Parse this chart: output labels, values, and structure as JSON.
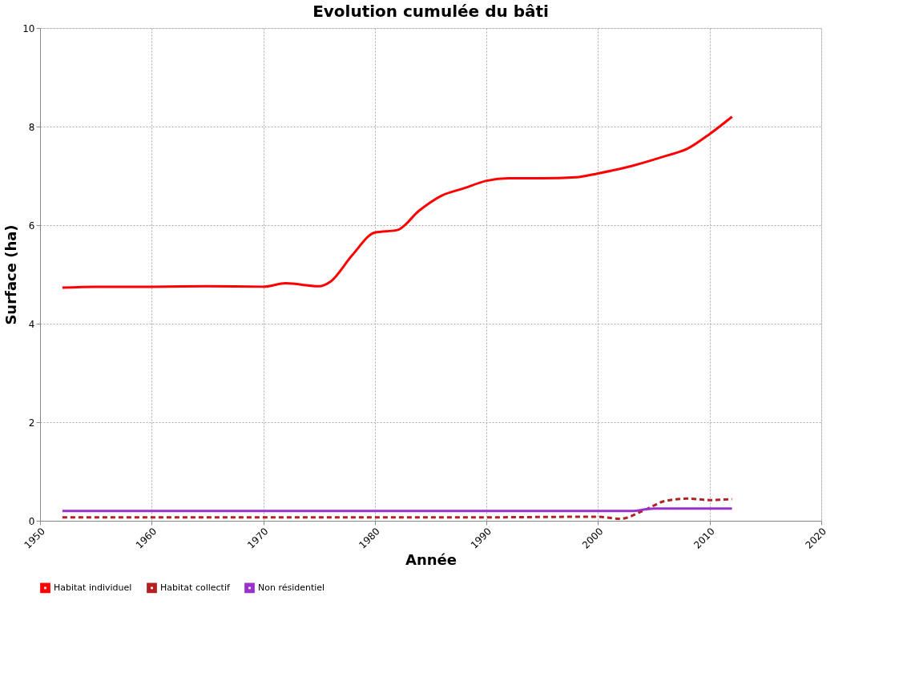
{
  "chart_data": {
    "type": "line",
    "title": "Evolution cumulée du bâti",
    "xlabel": "Année",
    "ylabel": "Surface (ha)",
    "xlim": [
      1950,
      2020
    ],
    "xticks": [
      1950,
      1960,
      1970,
      1980,
      1990,
      2000,
      2010,
      2020
    ],
    "ylim": [
      0,
      10
    ],
    "yticks": [
      0,
      2,
      4,
      6,
      8,
      10
    ],
    "grid": true,
    "legend": "bottom",
    "marker": "none",
    "series": [
      {
        "name": "Habitat individuel",
        "color": "#ff0000",
        "line_style": "solid",
        "x": [
          1952,
          1955,
          1960,
          1965,
          1970,
          1972,
          1975,
          1976,
          1978,
          1980,
          1982,
          1984,
          1986,
          1988,
          1990,
          1992,
          1995,
          1998,
          2000,
          2003,
          2006,
          2008,
          2010,
          2012
        ],
        "values": [
          4.73,
          4.75,
          4.75,
          4.76,
          4.75,
          4.82,
          4.76,
          4.85,
          5.4,
          5.85,
          5.9,
          6.3,
          6.6,
          6.75,
          6.9,
          6.95,
          6.95,
          6.97,
          7.05,
          7.2,
          7.4,
          7.55,
          7.85,
          8.2
        ]
      },
      {
        "name": "Habitat collectif",
        "color": "#b22222",
        "line_style": "dashed",
        "x": [
          1952,
          1970,
          1990,
          1998,
          2000,
          2002,
          2004,
          2006,
          2008,
          2010,
          2012
        ],
        "values": [
          0.07,
          0.07,
          0.07,
          0.08,
          0.08,
          0.04,
          0.2,
          0.4,
          0.45,
          0.42,
          0.44
        ]
      },
      {
        "name": "Non résidentiel",
        "color": "#9932cc",
        "line_style": "solid",
        "x": [
          1952,
          1970,
          1990,
          2003,
          2005,
          2012
        ],
        "values": [
          0.2,
          0.2,
          0.2,
          0.2,
          0.25,
          0.25
        ]
      }
    ]
  }
}
